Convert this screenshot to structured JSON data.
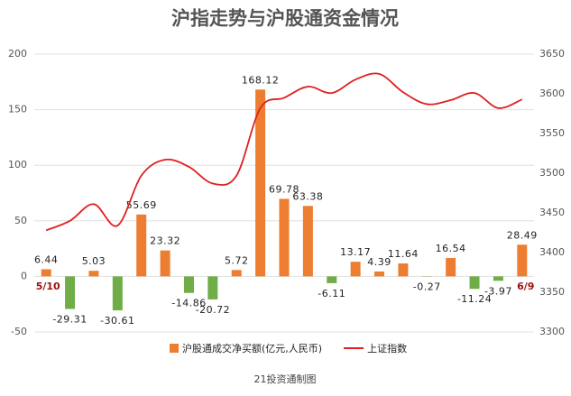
{
  "chart_data": {
    "type": "bar_line",
    "title": "沪指走势与沪股通资金情况",
    "source": "21投资通制图",
    "categories": [
      "5/10",
      null,
      null,
      null,
      null,
      null,
      null,
      null,
      null,
      null,
      null,
      null,
      null,
      null,
      null,
      null,
      null,
      null,
      null,
      null,
      "6/9"
    ],
    "series": [
      {
        "name": "沪股通成交净买额(亿元,人民币)",
        "type": "bar",
        "color": "#ed7d31",
        "negative_color": "#70ad47",
        "values": [
          6.44,
          -29.31,
          5.03,
          -30.61,
          55.69,
          23.32,
          -14.86,
          -20.72,
          5.72,
          168.12,
          69.78,
          63.38,
          -6.11,
          13.17,
          4.39,
          11.64,
          -0.27,
          16.54,
          -11.24,
          -3.97,
          28.49
        ]
      },
      {
        "name": "上证指数",
        "type": "line",
        "color": "#e02020",
        "axis": "y2",
        "values": [
          3428,
          3440,
          3461,
          3434,
          3497,
          3517,
          3508,
          3487,
          3497,
          3582,
          3595,
          3609,
          3601,
          3618,
          3625,
          3602,
          3587,
          3592,
          3601,
          3582,
          3593
        ]
      }
    ],
    "ylim": [
      -50,
      200
    ],
    "yticks": [
      -50,
      0,
      50,
      100,
      150,
      200
    ],
    "y2lim": [
      3300,
      3650
    ],
    "y2ticks": [
      3300,
      3350,
      3400,
      3450,
      3500,
      3550,
      3600,
      3650
    ],
    "grid": true,
    "legend": "bottom"
  }
}
